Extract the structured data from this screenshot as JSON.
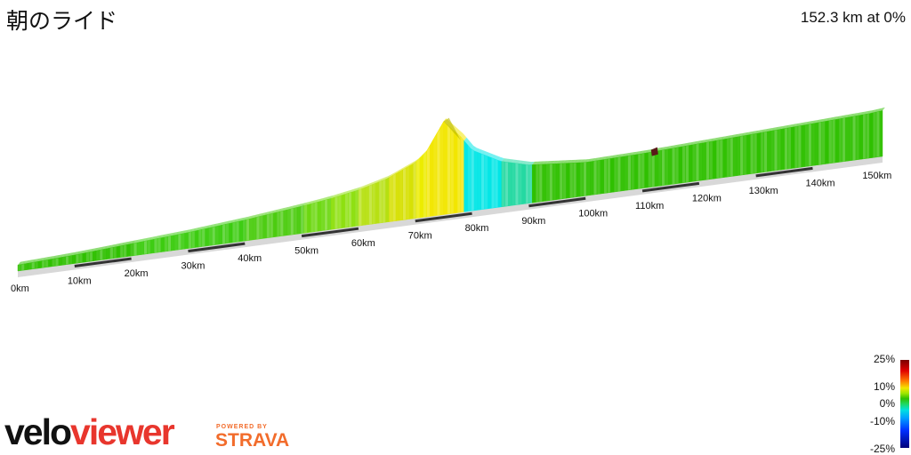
{
  "title": "朝のライド",
  "summary": "152.3 km at 0%",
  "chart_data": {
    "type": "area",
    "xunit": "km",
    "x_ticks": [
      0,
      10,
      20,
      30,
      40,
      50,
      60,
      70,
      80,
      90,
      100,
      110,
      120,
      130,
      140,
      150
    ],
    "x_tick_labels": [
      "0km",
      "10km",
      "20km",
      "30km",
      "40km",
      "50km",
      "60km",
      "70km",
      "80km",
      "90km",
      "100km",
      "110km",
      "120km",
      "130km",
      "140km",
      "150km"
    ],
    "distance_total_km": 152.3,
    "profile": {
      "distance_km": [
        0,
        10,
        20,
        30,
        40,
        50,
        55,
        60,
        65,
        70,
        72,
        75,
        78,
        80,
        85,
        90,
        100,
        110,
        120,
        130,
        140,
        150,
        152.3
      ],
      "relative_height": [
        0.02,
        0.04,
        0.07,
        0.1,
        0.14,
        0.19,
        0.22,
        0.26,
        0.32,
        0.42,
        0.5,
        0.72,
        0.58,
        0.46,
        0.34,
        0.28,
        0.24,
        0.25,
        0.27,
        0.29,
        0.31,
        0.33,
        0.34
      ],
      "grade_color": [
        "#2fc000",
        "#2fc000",
        "#3ccc10",
        "#3ccc10",
        "#4ccc10",
        "#6cd810",
        "#8ee010",
        "#b6e010",
        "#d6e000",
        "#ecec00",
        "#f2e600",
        "#f2e600",
        "#00e6e6",
        "#00e6e6",
        "#20d8a0",
        "#2fc000",
        "#2fc000",
        "#2fc000",
        "#2fc000",
        "#2fc000",
        "#2fc000",
        "#2fc000",
        "#2fc000"
      ]
    },
    "legend": {
      "labels": [
        "25%",
        "10%",
        "0%",
        "-10%",
        "-25%"
      ],
      "values": [
        25,
        10,
        0,
        -10,
        -25
      ],
      "placement": "bottom-right"
    }
  },
  "branding": {
    "logo_part1": "velo",
    "logo_part2": "viewer",
    "powered_by": "POWERED BY",
    "strava": "STRAVA"
  }
}
